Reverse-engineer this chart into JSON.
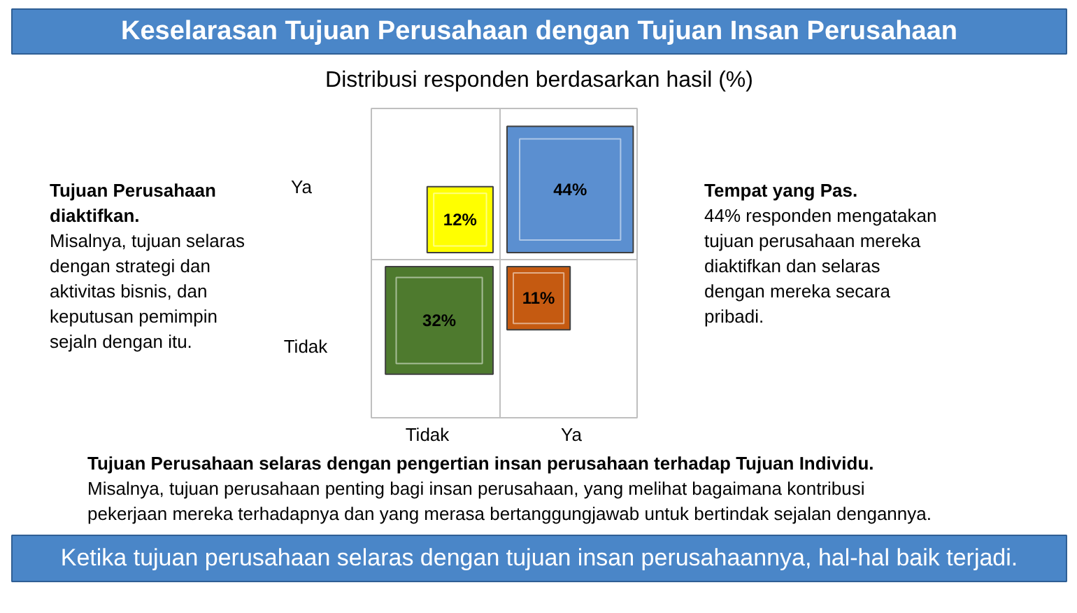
{
  "chart_data": {
    "type": "other",
    "title": "Keselarasan Tujuan Perusahaan dengan Tujuan Insan Perusahaan",
    "subtitle": "Distribusi responden berdasarkan hasil (%)",
    "categories": [
      "Tidak",
      "Ya"
    ],
    "y_categories": [
      "Ya",
      "Tidak"
    ],
    "series": [
      {
        "values": [
          12,
          44
        ],
        "colors": [
          "#ffff00",
          "#5b8fd0"
        ],
        "value_labels": [
          "12%",
          "44%"
        ]
      },
      {
        "values": [
          32,
          11
        ],
        "colors": [
          "#4e7a2e",
          "#c55a11"
        ],
        "value_labels": [
          "32%",
          "11%"
        ]
      }
    ],
    "annotations": [
      "Tujuan Perusahaan\ndiaktifkan.",
      "Misalnya, tujuan selaras\ndengan strategi dan\naktivitas bisnis, dan\nkeputusan pemimpin\nsejaln dengan itu.",
      "Tempat yang Pas.",
      "44% responden mengatakan\ntujuan perusahaan mereka\ndiaktifkan dan selaras\ndengan mereka secara\npribadi.",
      "Tujuan Perusahaan selaras dengan pengertian insan perusahaan terhadap Tujuan Individu.",
      "Misalnya, tujuan perusahaan penting bagi insan perusahaan, yang melihat bagaimana kontribusi\npekerjaan mereka terhadapnya dan yang merasa bertanggungjawab untuk bertindak sejalan dengannya.",
      "Ketika tujuan perusahaan selaras dengan tujuan insan perusahaannya, hal-hal baik terjadi."
    ]
  }
}
